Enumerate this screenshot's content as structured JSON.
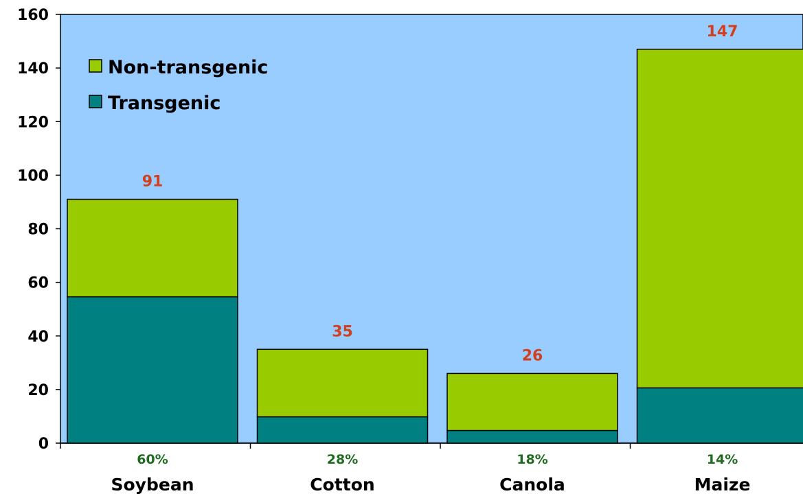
{
  "chart_data": {
    "type": "bar",
    "stacked": true,
    "categories": [
      "Soybean",
      "Cotton",
      "Canola",
      "Maize"
    ],
    "category_percent_labels": [
      "60%",
      "28%",
      "18%",
      "14%"
    ],
    "totals": [
      91,
      35,
      26,
      147
    ],
    "total_labels": [
      "91",
      "35",
      "26",
      "147"
    ],
    "series": [
      {
        "name": "Transgenic",
        "values": [
          54.6,
          9.8,
          4.7,
          20.6
        ],
        "color": "#008080"
      },
      {
        "name": "Non-transgenic",
        "values": [
          36.4,
          25.2,
          21.3,
          126.4
        ],
        "color": "#99cc00"
      }
    ],
    "ylim": [
      0,
      160
    ],
    "yticks": [
      0,
      20,
      40,
      60,
      80,
      100,
      120,
      140,
      160
    ],
    "ytick_labels": [
      "0",
      "20",
      "40",
      "60",
      "80",
      "100",
      "120",
      "140",
      "160"
    ],
    "legend_order": [
      "Non-transgenic",
      "Transgenic"
    ],
    "legend_placement": "top-left",
    "grid": false,
    "plot_background": "#99ccff",
    "total_label_color": "#d04020",
    "percent_label_color": "#1f6b1f"
  }
}
